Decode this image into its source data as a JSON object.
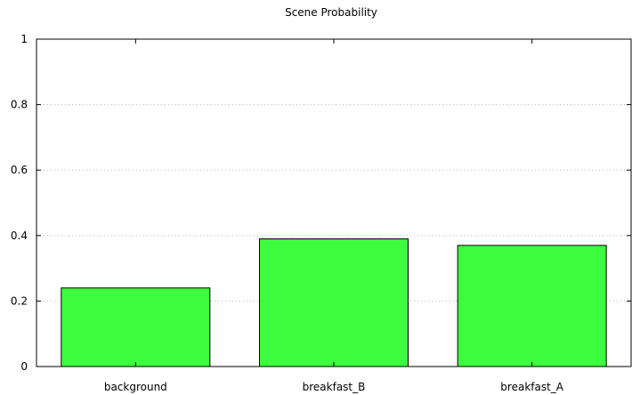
{
  "chart_data": {
    "type": "bar",
    "title": "Scene Probability",
    "categories": [
      "background",
      "breakfast_B",
      "breakfast_A"
    ],
    "values": [
      0.24,
      0.39,
      0.37
    ],
    "ylim": [
      0,
      1
    ],
    "yticks": [
      0,
      0.2,
      0.4,
      0.6,
      0.8,
      1
    ],
    "ytick_labels": [
      "0",
      "0.2",
      "0.4",
      "0.6",
      "0.8",
      "1"
    ],
    "xlabel": "",
    "ylabel": "",
    "grid": "y-dotted",
    "legend": "none",
    "bar_color": "#3dfc3d"
  }
}
